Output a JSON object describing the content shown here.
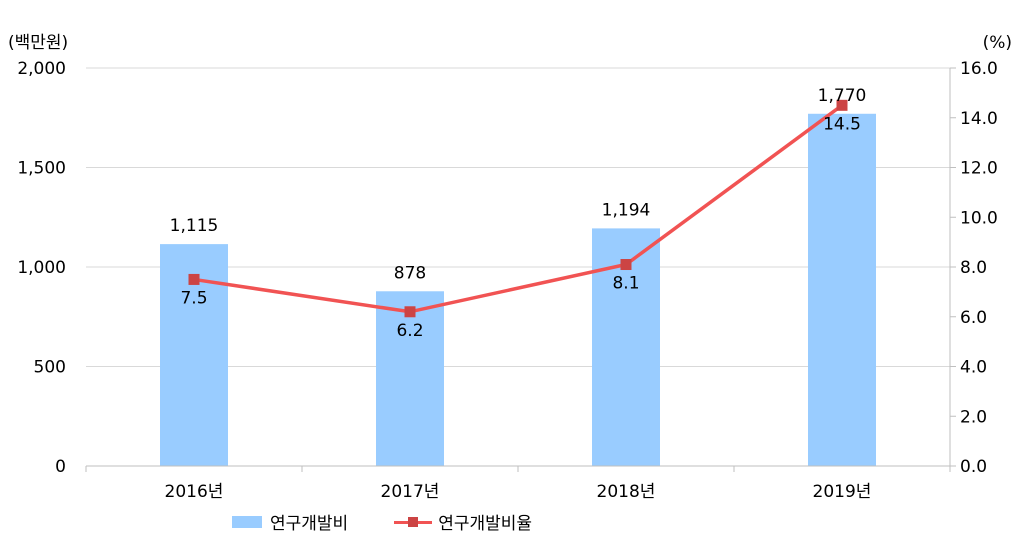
{
  "chart_data": {
    "type": "bar+line",
    "categories": [
      "2016년",
      "2017년",
      "2018년",
      "2019년"
    ],
    "series": [
      {
        "name": "연구개발비",
        "type": "bar",
        "axis": "left",
        "values": [
          1115,
          878,
          1194,
          1770
        ],
        "labels": [
          "1,115",
          "878",
          "1,194",
          "1,770"
        ],
        "color": "#99ccff"
      },
      {
        "name": "연구개발비율",
        "type": "line",
        "axis": "right",
        "values": [
          7.5,
          6.2,
          8.1,
          14.5
        ],
        "labels": [
          "7.5",
          "6.2",
          "8.1",
          "14.5"
        ],
        "color": "#f15353",
        "marker_color": "#cc4444"
      }
    ],
    "y_left": {
      "unit": "(백만원)",
      "lim": [
        0,
        2000
      ],
      "ticks": [
        "0",
        "500",
        "1,000",
        "1,500",
        "2,000"
      ]
    },
    "y_right": {
      "unit": "(%)",
      "lim": [
        0,
        16
      ],
      "ticks": [
        "0.0",
        "2.0",
        "4.0",
        "6.0",
        "8.0",
        "10.0",
        "12.0",
        "14.0",
        "16.0"
      ]
    },
    "grid": true,
    "legend_position": "bottom"
  }
}
